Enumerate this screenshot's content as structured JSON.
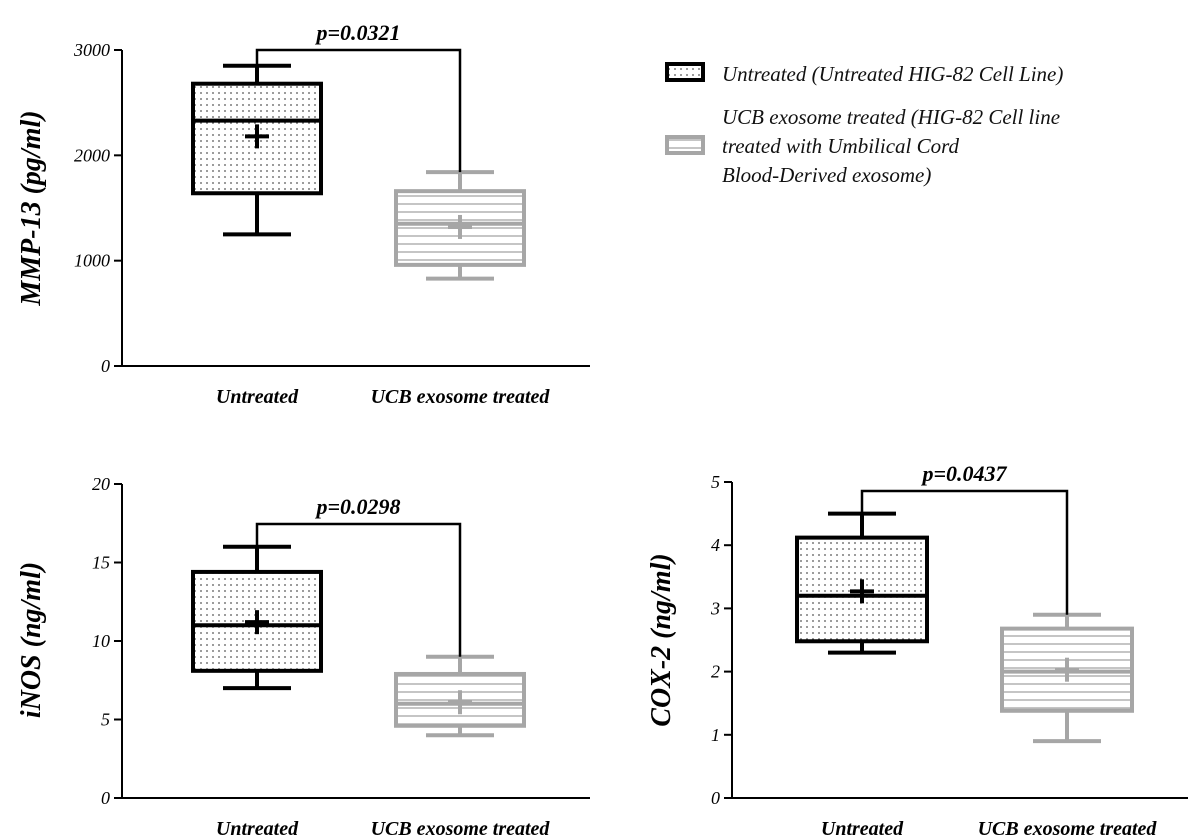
{
  "colors": {
    "untreated": "#000000",
    "ucb": "#a6a6a6",
    "dot_pattern": "#555555",
    "line_pattern": "#a6a6a6"
  },
  "legend": {
    "items": [
      {
        "lines": [
          "Untreated (Untreated HIG-82 Cell Line)"
        ],
        "pattern": "dots",
        "color": "#000000"
      },
      {
        "lines": [
          "UCB exosome treated (HIG-82 Cell line",
          "treated with Umbilical Cord",
          "Blood-Derived exosome)"
        ],
        "pattern": "lines",
        "color": "#a6a6a6"
      }
    ]
  },
  "chart_data": [
    {
      "type": "box",
      "ylabel": "MMP-13 (pg/ml)",
      "ylim": [
        0,
        3000
      ],
      "yticks": [
        "0",
        "1000",
        "2000",
        "3000"
      ],
      "categories": [
        "Untreated",
        "UCB exosome treated"
      ],
      "series": [
        {
          "min": 1250,
          "q1": 1640,
          "median": 2330,
          "q3": 2680,
          "max": 2850,
          "mean": 2180
        },
        {
          "min": 830,
          "q1": 960,
          "median": 1350,
          "q3": 1660,
          "max": 1840,
          "mean": 1320
        }
      ],
      "p_value": "p=0.0321"
    },
    {
      "type": "box",
      "ylabel": "iNOS (ng/ml)",
      "ylim": [
        0,
        20
      ],
      "yticks": [
        "0",
        "5",
        "10",
        "15",
        "20"
      ],
      "categories": [
        "Untreated",
        "UCB exosome treated"
      ],
      "series": [
        {
          "min": 7,
          "q1": 8.1,
          "median": 11,
          "q3": 14.4,
          "max": 16,
          "mean": 11.2
        },
        {
          "min": 4,
          "q1": 4.6,
          "median": 6,
          "q3": 7.9,
          "max": 9,
          "mean": 6.1
        }
      ],
      "p_value": "p=0.0298"
    },
    {
      "type": "box",
      "ylabel": "COX-2 (ng/ml)",
      "ylim": [
        0,
        5
      ],
      "yticks": [
        "0",
        "1",
        "2",
        "3",
        "4",
        "5"
      ],
      "categories": [
        "Untreated",
        "UCB exosome treated"
      ],
      "series": [
        {
          "min": 2.3,
          "q1": 2.48,
          "median": 3.2,
          "q3": 4.12,
          "max": 4.5,
          "mean": 3.27
        },
        {
          "min": 0.9,
          "q1": 1.38,
          "median": 2,
          "q3": 2.68,
          "max": 2.9,
          "mean": 2.03
        }
      ],
      "p_value": "p=0.0437"
    }
  ]
}
